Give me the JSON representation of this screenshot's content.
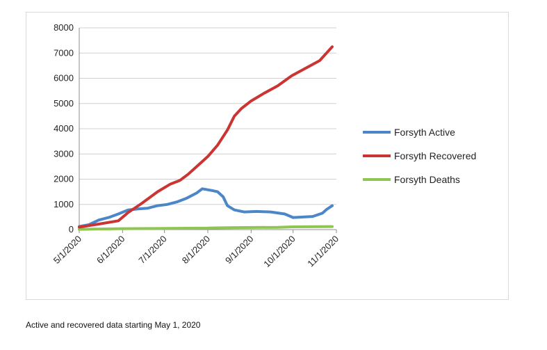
{
  "caption": "Active and recovered data starting May 1, 2020",
  "chart_data": {
    "type": "line",
    "title": "",
    "xlabel": "",
    "ylabel": "",
    "ylim": [
      0,
      8000
    ],
    "yticks": [
      0,
      1000,
      2000,
      3000,
      4000,
      5000,
      6000,
      7000,
      8000
    ],
    "xlim": [
      "2020-05-01",
      "2020-11-01"
    ],
    "xticks": [
      "5/1/2020",
      "6/1/2020",
      "7/1/2020",
      "8/1/2020",
      "9/1/2020",
      "10/1/2020",
      "11/1/2020"
    ],
    "grid": "horizontal",
    "legend_position": "right",
    "series": [
      {
        "name": "Forsyth Active",
        "color": "#4a86c8",
        "points": [
          [
            "2020-05-01",
            120
          ],
          [
            "2020-05-08",
            200
          ],
          [
            "2020-05-15",
            380
          ],
          [
            "2020-05-22",
            480
          ],
          [
            "2020-05-29",
            620
          ],
          [
            "2020-06-05",
            780
          ],
          [
            "2020-06-12",
            820
          ],
          [
            "2020-06-19",
            850
          ],
          [
            "2020-06-26",
            950
          ],
          [
            "2020-07-03",
            1000
          ],
          [
            "2020-07-10",
            1100
          ],
          [
            "2020-07-17",
            1250
          ],
          [
            "2020-07-24",
            1450
          ],
          [
            "2020-07-28",
            1620
          ],
          [
            "2020-08-04",
            1550
          ],
          [
            "2020-08-08",
            1500
          ],
          [
            "2020-08-12",
            1300
          ],
          [
            "2020-08-15",
            950
          ],
          [
            "2020-08-20",
            780
          ],
          [
            "2020-08-27",
            700
          ],
          [
            "2020-09-05",
            720
          ],
          [
            "2020-09-15",
            700
          ],
          [
            "2020-09-25",
            620
          ],
          [
            "2020-10-01",
            480
          ],
          [
            "2020-10-08",
            500
          ],
          [
            "2020-10-15",
            520
          ],
          [
            "2020-10-22",
            650
          ],
          [
            "2020-10-25",
            800
          ],
          [
            "2020-10-29",
            950
          ]
        ]
      },
      {
        "name": "Forsyth Recovered",
        "color": "#cc3333",
        "points": [
          [
            "2020-05-01",
            100
          ],
          [
            "2020-05-15",
            220
          ],
          [
            "2020-05-29",
            350
          ],
          [
            "2020-06-05",
            680
          ],
          [
            "2020-06-15",
            1050
          ],
          [
            "2020-06-26",
            1500
          ],
          [
            "2020-07-05",
            1800
          ],
          [
            "2020-07-12",
            1950
          ],
          [
            "2020-07-18",
            2200
          ],
          [
            "2020-07-25",
            2550
          ],
          [
            "2020-08-01",
            2900
          ],
          [
            "2020-08-08",
            3350
          ],
          [
            "2020-08-15",
            3950
          ],
          [
            "2020-08-20",
            4500
          ],
          [
            "2020-08-25",
            4800
          ],
          [
            "2020-09-01",
            5100
          ],
          [
            "2020-09-10",
            5400
          ],
          [
            "2020-09-20",
            5700
          ],
          [
            "2020-09-30",
            6100
          ],
          [
            "2020-10-10",
            6400
          ],
          [
            "2020-10-20",
            6700
          ],
          [
            "2020-10-29",
            7250
          ]
        ]
      },
      {
        "name": "Forsyth Deaths",
        "color": "#8fc653",
        "points": [
          [
            "2020-05-01",
            10
          ],
          [
            "2020-06-01",
            40
          ],
          [
            "2020-07-01",
            50
          ],
          [
            "2020-08-01",
            60
          ],
          [
            "2020-08-06",
            70
          ],
          [
            "2020-08-20",
            80
          ],
          [
            "2020-09-20",
            90
          ],
          [
            "2020-10-01",
            110
          ],
          [
            "2020-10-29",
            120
          ]
        ]
      }
    ]
  }
}
